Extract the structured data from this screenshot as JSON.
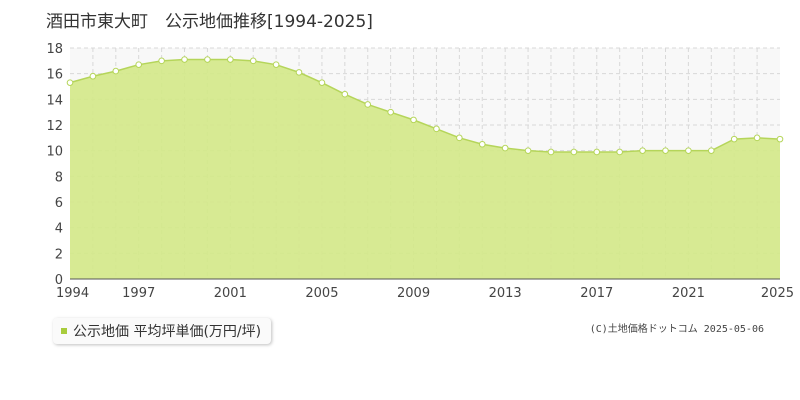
{
  "title": "酒田市東大町　公示地価推移[1994-2025]",
  "legend": {
    "label": "公示地価 平均坪単価(万円/坪)"
  },
  "footer": {
    "copyright": "(C)土地価格ドットコム 2025-05-06"
  },
  "colors": {
    "fill": "#d4e88a",
    "line": "#b5d55a",
    "marker_fill": "#ffffff",
    "legend_swatch": "#a8cc3c",
    "upper_background": "#f8f8f8",
    "grid": "#d8d8d8"
  },
  "chart_data": {
    "type": "area",
    "title": "酒田市東大町　公示地価推移[1994-2025]",
    "xlabel": "",
    "ylabel": "",
    "xlim": [
      1994,
      2025
    ],
    "ylim": [
      0,
      18
    ],
    "x_ticks": [
      1994,
      1997,
      2001,
      2005,
      2009,
      2013,
      2017,
      2021,
      2025
    ],
    "y_ticks": [
      0,
      2,
      4,
      6,
      8,
      10,
      12,
      14,
      16,
      18
    ],
    "grid": true,
    "legend_position": "bottom-left",
    "series": [
      {
        "name": "公示地価 平均坪単価(万円/坪)",
        "x": [
          1994,
          1995,
          1996,
          1997,
          1998,
          1999,
          2000,
          2001,
          2002,
          2003,
          2004,
          2005,
          2006,
          2007,
          2008,
          2009,
          2010,
          2011,
          2012,
          2013,
          2014,
          2015,
          2016,
          2017,
          2018,
          2019,
          2020,
          2021,
          2022,
          2023,
          2024,
          2025
        ],
        "values": [
          15.3,
          15.8,
          16.2,
          16.7,
          17.0,
          17.1,
          17.1,
          17.1,
          17.0,
          16.7,
          16.1,
          15.3,
          14.4,
          13.6,
          13.0,
          12.4,
          11.7,
          11.0,
          10.5,
          10.2,
          10.0,
          9.9,
          9.9,
          9.9,
          9.9,
          10.0,
          10.0,
          10.0,
          10.0,
          10.9,
          11.0,
          10.9
        ]
      }
    ]
  }
}
